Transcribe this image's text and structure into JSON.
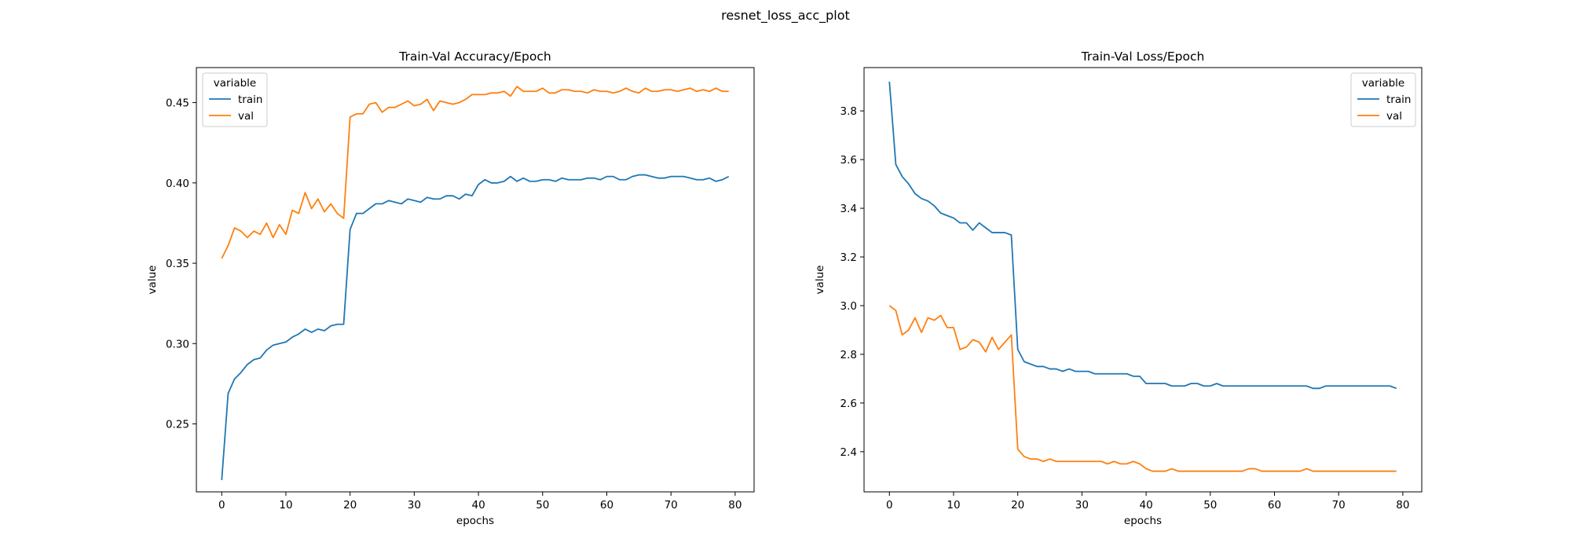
{
  "figure": {
    "suptitle": "resnet_loss_acc_plot"
  },
  "colors": {
    "train": "#1f77b4",
    "val": "#ff7f0e"
  },
  "chart_data": [
    {
      "type": "line",
      "title": "Train-Val Accuracy/Epoch",
      "xlabel": "epochs",
      "ylabel": "value",
      "xlim": [
        -3.95,
        82.95
      ],
      "ylim": [
        0.2077,
        0.4718
      ],
      "xticks": [
        0,
        10,
        20,
        30,
        40,
        50,
        60,
        70,
        80
      ],
      "yticks": [
        0.25,
        0.3,
        0.35,
        0.4,
        0.45
      ],
      "ytick_labels": [
        "0.25",
        "0.30",
        "0.35",
        "0.40",
        "0.45"
      ],
      "grid": false,
      "legend": {
        "title": "variable",
        "placement": "top-left"
      },
      "series": [
        {
          "name": "train",
          "color": "#1f77b4",
          "x": [
            0,
            1,
            2,
            3,
            4,
            5,
            6,
            7,
            8,
            9,
            10,
            11,
            12,
            13,
            14,
            15,
            16,
            17,
            18,
            19,
            20,
            21,
            22,
            23,
            24,
            25,
            26,
            27,
            28,
            29,
            30,
            31,
            32,
            33,
            34,
            35,
            36,
            37,
            38,
            39,
            40,
            41,
            42,
            43,
            44,
            45,
            46,
            47,
            48,
            49,
            50,
            51,
            52,
            53,
            54,
            55,
            56,
            57,
            58,
            59,
            60,
            61,
            62,
            63,
            64,
            65,
            66,
            67,
            68,
            69,
            70,
            71,
            72,
            73,
            74,
            75,
            76,
            77,
            78,
            79
          ],
          "values": [
            0.215,
            0.269,
            0.278,
            0.282,
            0.287,
            0.29,
            0.291,
            0.296,
            0.299,
            0.3,
            0.301,
            0.304,
            0.306,
            0.309,
            0.307,
            0.309,
            0.308,
            0.311,
            0.312,
            0.312,
            0.371,
            0.381,
            0.381,
            0.384,
            0.387,
            0.387,
            0.389,
            0.388,
            0.387,
            0.39,
            0.389,
            0.388,
            0.391,
            0.39,
            0.39,
            0.392,
            0.392,
            0.39,
            0.393,
            0.392,
            0.399,
            0.402,
            0.4,
            0.4,
            0.401,
            0.404,
            0.401,
            0.403,
            0.401,
            0.401,
            0.402,
            0.402,
            0.401,
            0.403,
            0.402,
            0.402,
            0.402,
            0.403,
            0.403,
            0.402,
            0.404,
            0.404,
            0.402,
            0.402,
            0.404,
            0.405,
            0.405,
            0.404,
            0.403,
            0.403,
            0.404,
            0.404,
            0.404,
            0.403,
            0.402,
            0.402,
            0.403,
            0.401,
            0.402,
            0.404
          ]
        },
        {
          "name": "val",
          "color": "#ff7f0e",
          "x": [
            0,
            1,
            2,
            3,
            4,
            5,
            6,
            7,
            8,
            9,
            10,
            11,
            12,
            13,
            14,
            15,
            16,
            17,
            18,
            19,
            20,
            21,
            22,
            23,
            24,
            25,
            26,
            27,
            28,
            29,
            30,
            31,
            32,
            33,
            34,
            35,
            36,
            37,
            38,
            39,
            40,
            41,
            42,
            43,
            44,
            45,
            46,
            47,
            48,
            49,
            50,
            51,
            52,
            53,
            54,
            55,
            56,
            57,
            58,
            59,
            60,
            61,
            62,
            63,
            64,
            65,
            66,
            67,
            68,
            69,
            70,
            71,
            72,
            73,
            74,
            75,
            76,
            77,
            78,
            79
          ],
          "values": [
            0.353,
            0.361,
            0.372,
            0.37,
            0.366,
            0.37,
            0.368,
            0.375,
            0.366,
            0.374,
            0.368,
            0.383,
            0.381,
            0.394,
            0.384,
            0.39,
            0.382,
            0.387,
            0.381,
            0.378,
            0.441,
            0.443,
            0.443,
            0.449,
            0.45,
            0.444,
            0.447,
            0.447,
            0.449,
            0.451,
            0.448,
            0.449,
            0.452,
            0.445,
            0.451,
            0.45,
            0.449,
            0.45,
            0.452,
            0.455,
            0.455,
            0.455,
            0.456,
            0.456,
            0.457,
            0.454,
            0.46,
            0.457,
            0.457,
            0.457,
            0.459,
            0.456,
            0.456,
            0.458,
            0.458,
            0.457,
            0.457,
            0.456,
            0.458,
            0.457,
            0.457,
            0.456,
            0.457,
            0.459,
            0.457,
            0.456,
            0.459,
            0.457,
            0.457,
            0.458,
            0.458,
            0.457,
            0.458,
            0.459,
            0.457,
            0.458,
            0.457,
            0.459,
            0.457,
            0.457
          ]
        }
      ]
    },
    {
      "type": "line",
      "title": "Train-Val Loss/Epoch",
      "xlabel": "epochs",
      "ylabel": "value",
      "xlim": [
        -3.95,
        82.95
      ],
      "ylim": [
        2.235,
        3.978
      ],
      "xticks": [
        0,
        10,
        20,
        30,
        40,
        50,
        60,
        70,
        80
      ],
      "yticks": [
        2.4,
        2.6,
        2.8,
        3.0,
        3.2,
        3.4,
        3.6,
        3.8
      ],
      "ytick_labels": [
        "2.4",
        "2.6",
        "2.8",
        "3.0",
        "3.2",
        "3.4",
        "3.6",
        "3.8"
      ],
      "grid": false,
      "legend": {
        "title": "variable",
        "placement": "top-right"
      },
      "series": [
        {
          "name": "train",
          "color": "#1f77b4",
          "x": [
            0,
            1,
            2,
            3,
            4,
            5,
            6,
            7,
            8,
            9,
            10,
            11,
            12,
            13,
            14,
            15,
            16,
            17,
            18,
            19,
            20,
            21,
            22,
            23,
            24,
            25,
            26,
            27,
            28,
            29,
            30,
            31,
            32,
            33,
            34,
            35,
            36,
            37,
            38,
            39,
            40,
            41,
            42,
            43,
            44,
            45,
            46,
            47,
            48,
            49,
            50,
            51,
            52,
            53,
            54,
            55,
            56,
            57,
            58,
            59,
            60,
            61,
            62,
            63,
            64,
            65,
            66,
            67,
            68,
            69,
            70,
            71,
            72,
            73,
            74,
            75,
            76,
            77,
            78,
            79
          ],
          "values": [
            3.92,
            3.58,
            3.53,
            3.5,
            3.46,
            3.44,
            3.43,
            3.41,
            3.38,
            3.37,
            3.36,
            3.34,
            3.34,
            3.31,
            3.34,
            3.32,
            3.3,
            3.3,
            3.3,
            3.29,
            2.82,
            2.77,
            2.76,
            2.75,
            2.75,
            2.74,
            2.74,
            2.73,
            2.74,
            2.73,
            2.73,
            2.73,
            2.72,
            2.72,
            2.72,
            2.72,
            2.72,
            2.72,
            2.71,
            2.71,
            2.68,
            2.68,
            2.68,
            2.68,
            2.67,
            2.67,
            2.67,
            2.68,
            2.68,
            2.67,
            2.67,
            2.68,
            2.67,
            2.67,
            2.67,
            2.67,
            2.67,
            2.67,
            2.67,
            2.67,
            2.67,
            2.67,
            2.67,
            2.67,
            2.67,
            2.67,
            2.66,
            2.66,
            2.67,
            2.67,
            2.67,
            2.67,
            2.67,
            2.67,
            2.67,
            2.67,
            2.67,
            2.67,
            2.67,
            2.66
          ]
        },
        {
          "name": "val",
          "color": "#ff7f0e",
          "x": [
            0,
            1,
            2,
            3,
            4,
            5,
            6,
            7,
            8,
            9,
            10,
            11,
            12,
            13,
            14,
            15,
            16,
            17,
            18,
            19,
            20,
            21,
            22,
            23,
            24,
            25,
            26,
            27,
            28,
            29,
            30,
            31,
            32,
            33,
            34,
            35,
            36,
            37,
            38,
            39,
            40,
            41,
            42,
            43,
            44,
            45,
            46,
            47,
            48,
            49,
            50,
            51,
            52,
            53,
            54,
            55,
            56,
            57,
            58,
            59,
            60,
            61,
            62,
            63,
            64,
            65,
            66,
            67,
            68,
            69,
            70,
            71,
            72,
            73,
            74,
            75,
            76,
            77,
            78,
            79
          ],
          "values": [
            3.0,
            2.98,
            2.88,
            2.9,
            2.95,
            2.89,
            2.95,
            2.94,
            2.96,
            2.91,
            2.91,
            2.82,
            2.83,
            2.86,
            2.85,
            2.81,
            2.87,
            2.82,
            2.85,
            2.88,
            2.41,
            2.38,
            2.37,
            2.37,
            2.36,
            2.37,
            2.36,
            2.36,
            2.36,
            2.36,
            2.36,
            2.36,
            2.36,
            2.36,
            2.35,
            2.36,
            2.35,
            2.35,
            2.36,
            2.35,
            2.33,
            2.32,
            2.32,
            2.32,
            2.33,
            2.32,
            2.32,
            2.32,
            2.32,
            2.32,
            2.32,
            2.32,
            2.32,
            2.32,
            2.32,
            2.32,
            2.33,
            2.33,
            2.32,
            2.32,
            2.32,
            2.32,
            2.32,
            2.32,
            2.32,
            2.33,
            2.32,
            2.32,
            2.32,
            2.32,
            2.32,
            2.32,
            2.32,
            2.32,
            2.32,
            2.32,
            2.32,
            2.32,
            2.32,
            2.32
          ]
        }
      ]
    }
  ]
}
